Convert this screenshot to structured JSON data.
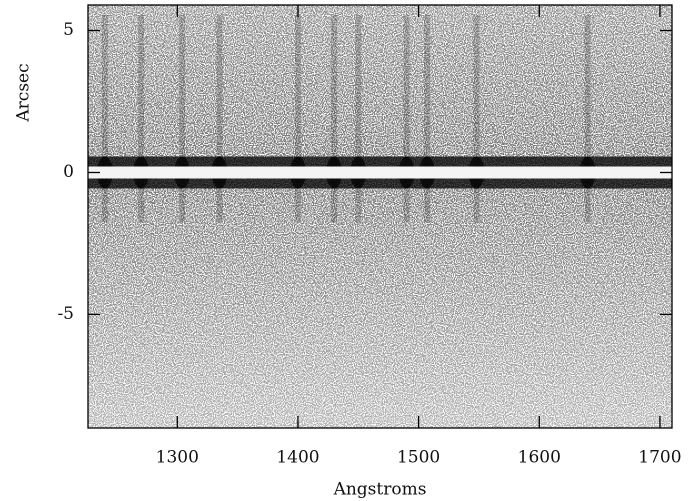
{
  "chart_data": {
    "type": "spectrum2d",
    "x_label": "Angstroms",
    "y_label": "Arcsec",
    "xlim": [
      1226,
      1710
    ],
    "ylim": [
      -9,
      5.9
    ],
    "xticks": [
      1300,
      1400,
      1500,
      1600,
      1700
    ],
    "yticks": [
      5,
      0,
      -5
    ],
    "trace_y": 0,
    "emission_lines": [
      1240,
      1270,
      1304,
      1335,
      1400,
      1430,
      1450,
      1490,
      1507,
      1548,
      1640
    ]
  }
}
